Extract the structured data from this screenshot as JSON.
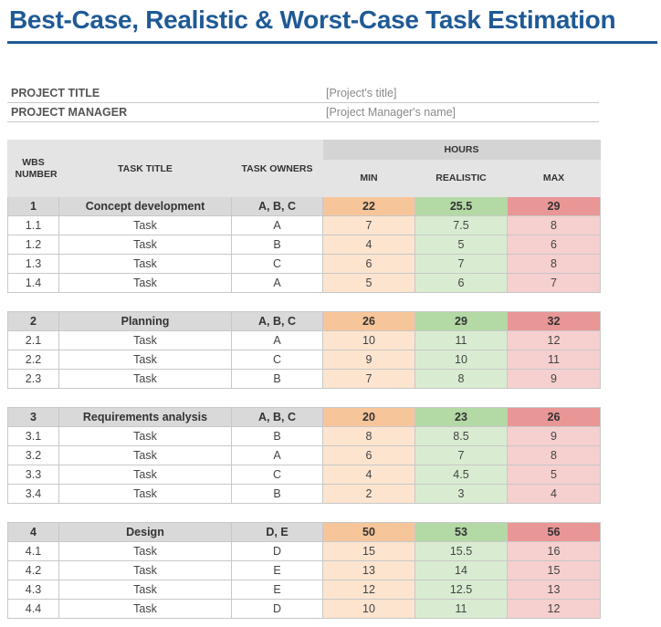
{
  "title": "Best-Case, Realistic & Worst-Case Task Estimation",
  "project": {
    "title_label": "PROJECT TITLE",
    "title_value": "[Project's title]",
    "manager_label": "PROJECT MANAGER",
    "manager_value": "[Project Manager's name]"
  },
  "headers": {
    "wbs": "WBS NUMBER",
    "task_title": "TASK TITLE",
    "task_owners": "TASK OWNERS",
    "hours": "HOURS",
    "min": "MIN",
    "realistic": "REALISTIC",
    "max": "MAX"
  },
  "groups": [
    {
      "wbs": "1",
      "title": "Concept development",
      "owners": "A, B, C",
      "min": "22",
      "realistic": "25.5",
      "max": "29",
      "tasks": [
        {
          "wbs": "1.1",
          "title": "Task",
          "owners": "A",
          "min": "7",
          "realistic": "7.5",
          "max": "8"
        },
        {
          "wbs": "1.2",
          "title": "Task",
          "owners": "B",
          "min": "4",
          "realistic": "5",
          "max": "6"
        },
        {
          "wbs": "1.3",
          "title": "Task",
          "owners": "C",
          "min": "6",
          "realistic": "7",
          "max": "8"
        },
        {
          "wbs": "1.4",
          "title": "Task",
          "owners": "A",
          "min": "5",
          "realistic": "6",
          "max": "7"
        }
      ]
    },
    {
      "wbs": "2",
      "title": "Planning",
      "owners": "A, B, C",
      "min": "26",
      "realistic": "29",
      "max": "32",
      "tasks": [
        {
          "wbs": "2.1",
          "title": "Task",
          "owners": "A",
          "min": "10",
          "realistic": "11",
          "max": "12"
        },
        {
          "wbs": "2.2",
          "title": "Task",
          "owners": "C",
          "min": "9",
          "realistic": "10",
          "max": "11"
        },
        {
          "wbs": "2.3",
          "title": "Task",
          "owners": "B",
          "min": "7",
          "realistic": "8",
          "max": "9"
        }
      ]
    },
    {
      "wbs": "3",
      "title": "Requirements analysis",
      "owners": "A, B, C",
      "min": "20",
      "realistic": "23",
      "max": "26",
      "tasks": [
        {
          "wbs": "3.1",
          "title": "Task",
          "owners": "B",
          "min": "8",
          "realistic": "8.5",
          "max": "9"
        },
        {
          "wbs": "3.2",
          "title": "Task",
          "owners": "A",
          "min": "6",
          "realistic": "7",
          "max": "8"
        },
        {
          "wbs": "3.3",
          "title": "Task",
          "owners": "C",
          "min": "4",
          "realistic": "4.5",
          "max": "5"
        },
        {
          "wbs": "3.4",
          "title": "Task",
          "owners": "B",
          "min": "2",
          "realistic": "3",
          "max": "4"
        }
      ]
    },
    {
      "wbs": "4",
      "title": "Design",
      "owners": "D, E",
      "min": "50",
      "realistic": "53",
      "max": "56",
      "tasks": [
        {
          "wbs": "4.1",
          "title": "Task",
          "owners": "D",
          "min": "15",
          "realistic": "15.5",
          "max": "16"
        },
        {
          "wbs": "4.2",
          "title": "Task",
          "owners": "E",
          "min": "13",
          "realistic": "14",
          "max": "15"
        },
        {
          "wbs": "4.3",
          "title": "Task",
          "owners": "E",
          "min": "12",
          "realistic": "12.5",
          "max": "13"
        },
        {
          "wbs": "4.4",
          "title": "Task",
          "owners": "D",
          "min": "10",
          "realistic": "11",
          "max": "12"
        }
      ]
    }
  ],
  "colors": {
    "title": "#1f5a96",
    "group_min": "#f7c59a",
    "group_realistic": "#b3d9a5",
    "group_max": "#e99696",
    "task_min": "#fce4cf",
    "task_realistic": "#d9ecd1",
    "task_max": "#f6cfcf"
  }
}
